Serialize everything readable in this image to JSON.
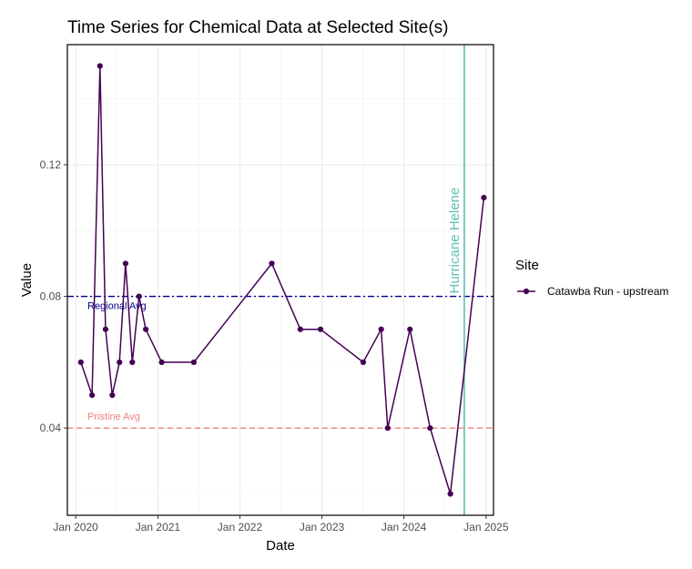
{
  "chart_data": {
    "type": "line",
    "title": "Time Series for Chemical Data at Selected Site(s)",
    "xlabel": "Date",
    "ylabel": "Value",
    "x_ticks": [
      "Jan 2020",
      "Jan 2021",
      "Jan 2022",
      "Jan 2023",
      "Jan 2024",
      "Jan 2025"
    ],
    "y_ticks": [
      "0.04",
      "0.08",
      "0.12"
    ],
    "xlim": [
      "2019-11-25",
      "2025-02-03"
    ],
    "ylim": [
      0.0135,
      0.1565
    ],
    "grid": true,
    "legend_position": "right",
    "legend_title": "Site",
    "series": [
      {
        "name": "Catawba Run - upstream",
        "color": "#440154",
        "points": [
          {
            "x": "2020-01-24",
            "y": 0.06
          },
          {
            "x": "2020-03-14",
            "y": 0.05
          },
          {
            "x": "2020-04-18",
            "y": 0.15
          },
          {
            "x": "2020-05-13",
            "y": 0.07
          },
          {
            "x": "2020-06-12",
            "y": 0.05
          },
          {
            "x": "2020-07-14",
            "y": 0.06
          },
          {
            "x": "2020-08-10",
            "y": 0.09
          },
          {
            "x": "2020-09-09",
            "y": 0.06
          },
          {
            "x": "2020-10-09",
            "y": 0.08
          },
          {
            "x": "2020-11-08",
            "y": 0.07
          },
          {
            "x": "2021-01-18",
            "y": 0.06
          },
          {
            "x": "2021-06-10",
            "y": 0.06
          },
          {
            "x": "2022-05-23",
            "y": 0.09
          },
          {
            "x": "2022-09-27",
            "y": 0.07
          },
          {
            "x": "2022-12-26",
            "y": 0.07
          },
          {
            "x": "2023-07-04",
            "y": 0.06
          },
          {
            "x": "2023-09-22",
            "y": 0.07
          },
          {
            "x": "2023-10-21",
            "y": 0.04
          },
          {
            "x": "2024-01-28",
            "y": 0.07
          },
          {
            "x": "2024-04-27",
            "y": 0.04
          },
          {
            "x": "2024-07-26",
            "y": 0.02
          },
          {
            "x": "2024-12-22",
            "y": 0.11
          }
        ]
      }
    ],
    "reference_lines": [
      {
        "label": "Regional Avg",
        "y": 0.08,
        "color": "#00008b",
        "style": "dashdot"
      },
      {
        "label": "Pristine Avg",
        "y": 0.04,
        "color": "#f08080",
        "style": "dashed"
      }
    ],
    "annotations": [
      {
        "label": "Hurricane Helene",
        "x": "2024-09-26",
        "color": "#5fbfb0",
        "orientation": "vertical"
      }
    ]
  }
}
